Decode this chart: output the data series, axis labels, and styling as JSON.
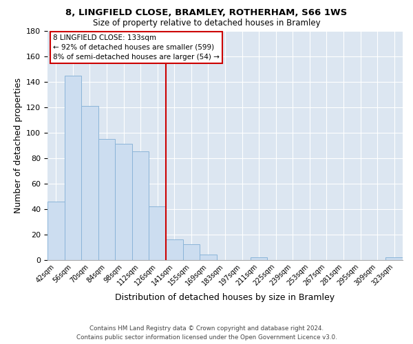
{
  "title1": "8, LINGFIELD CLOSE, BRAMLEY, ROTHERHAM, S66 1WS",
  "title2": "Size of property relative to detached houses in Bramley",
  "xlabel": "Distribution of detached houses by size in Bramley",
  "ylabel": "Number of detached properties",
  "bar_labels": [
    "42sqm",
    "56sqm",
    "70sqm",
    "84sqm",
    "98sqm",
    "112sqm",
    "126sqm",
    "141sqm",
    "155sqm",
    "169sqm",
    "183sqm",
    "197sqm",
    "211sqm",
    "225sqm",
    "239sqm",
    "253sqm",
    "267sqm",
    "281sqm",
    "295sqm",
    "309sqm",
    "323sqm"
  ],
  "bar_values": [
    46,
    145,
    121,
    95,
    91,
    85,
    42,
    16,
    12,
    4,
    0,
    0,
    2,
    0,
    0,
    0,
    0,
    0,
    0,
    0,
    2
  ],
  "bar_color": "#ccddf0",
  "bar_edge_color": "#8ab4d8",
  "vline_color": "#cc0000",
  "vline_x_index": 6.5,
  "annotation_title": "8 LINGFIELD CLOSE: 133sqm",
  "annotation_line1": "← 92% of detached houses are smaller (599)",
  "annotation_line2": "8% of semi-detached houses are larger (54) →",
  "annotation_box_color": "#ffffff",
  "annotation_box_edge": "#cc0000",
  "ylim": [
    0,
    180
  ],
  "yticks": [
    0,
    20,
    40,
    60,
    80,
    100,
    120,
    140,
    160,
    180
  ],
  "footer1": "Contains HM Land Registry data © Crown copyright and database right 2024.",
  "footer2": "Contains public sector information licensed under the Open Government Licence v3.0.",
  "bg_color": "#dce6f1"
}
